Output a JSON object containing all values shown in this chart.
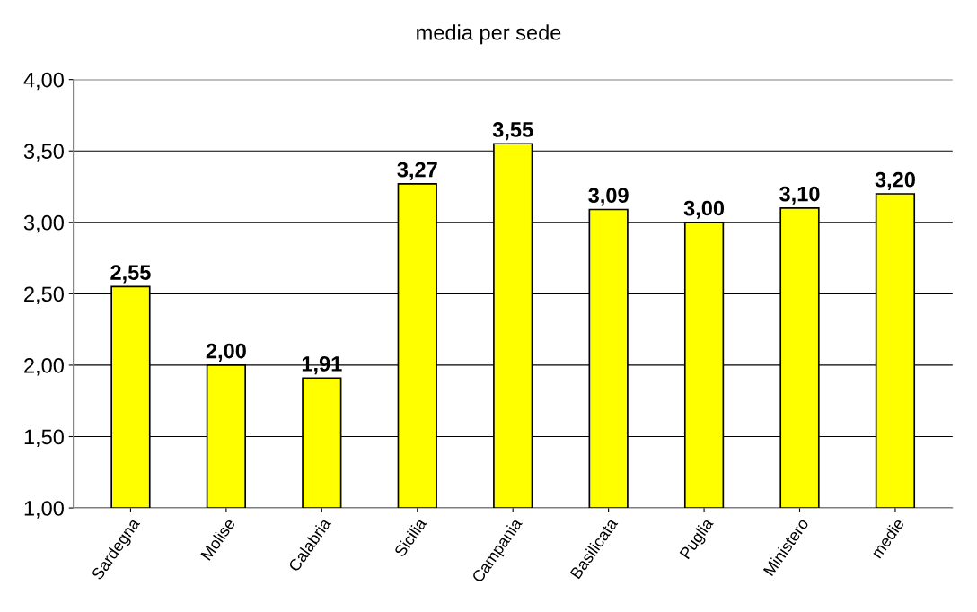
{
  "chart_data": {
    "type": "bar",
    "title": "media per sede",
    "categories": [
      "Sardegna",
      "Molise",
      "Calabria",
      "Sicilia",
      "Campania",
      "Basilicata",
      "Puglia",
      "Ministero",
      "medie"
    ],
    "values": [
      2.55,
      2.0,
      1.91,
      3.27,
      3.55,
      3.09,
      3.0,
      3.1,
      3.2
    ],
    "value_labels": [
      "2,55",
      "2,00",
      "1,91",
      "3,27",
      "3,55",
      "3,09",
      "3,00",
      "3,10",
      "3,20"
    ],
    "color": "#ffff00",
    "ylim": [
      1,
      4
    ],
    "yticks": [
      {
        "value": 1,
        "label": "1,00"
      },
      {
        "value": 1.5,
        "label": "1,50"
      },
      {
        "value": 2,
        "label": "2,00"
      },
      {
        "value": 2.5,
        "label": "2,50"
      },
      {
        "value": 3,
        "label": "3,00"
      },
      {
        "value": 3.5,
        "label": "3,50"
      },
      {
        "value": 4,
        "label": "4,00"
      }
    ],
    "grid": "y",
    "legend": false
  }
}
